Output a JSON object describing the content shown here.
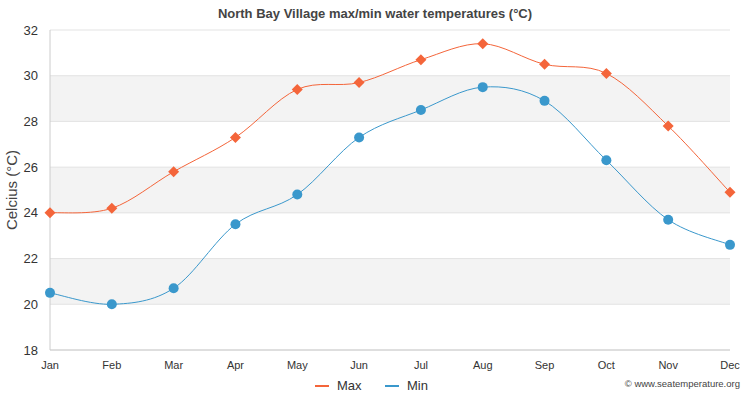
{
  "chart_data": {
    "type": "line",
    "title": "North Bay Village max/min water temperatures (°C)",
    "y_label": "Celcius (°C)",
    "source": "© www.seatemperature.org",
    "categories": [
      "Jan",
      "Feb",
      "Mar",
      "Apr",
      "May",
      "Jun",
      "Jul",
      "Aug",
      "Sep",
      "Oct",
      "Nov",
      "Dec"
    ],
    "series": [
      {
        "name": "Max",
        "color": "#f4653a",
        "marker": "diamond",
        "values": [
          24.0,
          24.2,
          25.8,
          27.3,
          29.4,
          29.7,
          30.7,
          31.4,
          30.5,
          30.1,
          27.8,
          24.9
        ]
      },
      {
        "name": "Min",
        "color": "#3a98cc",
        "marker": "circle",
        "values": [
          20.5,
          20.0,
          20.7,
          23.5,
          24.8,
          27.3,
          28.5,
          29.5,
          28.9,
          26.3,
          23.7,
          22.6
        ]
      }
    ],
    "ylim": [
      18,
      32
    ],
    "yticks": [
      18,
      20,
      22,
      24,
      26,
      28,
      30,
      32
    ],
    "grid": true,
    "legend": "bottom"
  }
}
